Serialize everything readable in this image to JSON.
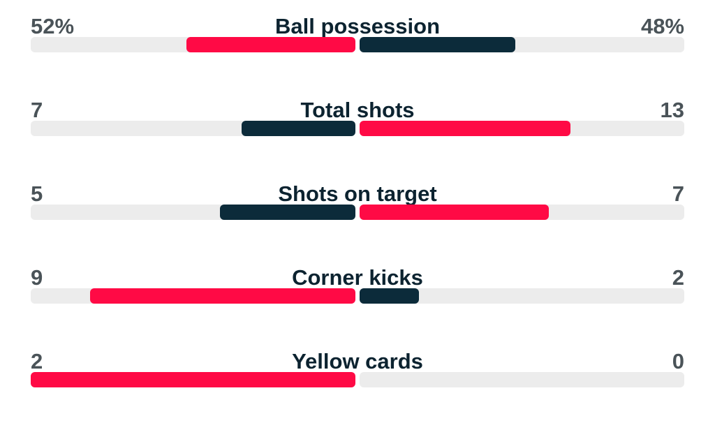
{
  "colors": {
    "leading": "#ff0a45",
    "trailing": "#0c2b3a",
    "track": "#ececec"
  },
  "stats": [
    {
      "title": "Ball possession",
      "home": "52%",
      "away": "48%",
      "home_value": 52,
      "away_value": 48,
      "home_leads": true
    },
    {
      "title": "Total shots",
      "home": "7",
      "away": "13",
      "home_value": 7,
      "away_value": 13,
      "home_leads": false
    },
    {
      "title": "Shots on target",
      "home": "5",
      "away": "7",
      "home_value": 5,
      "away_value": 7,
      "home_leads": false
    },
    {
      "title": "Corner kicks",
      "home": "9",
      "away": "2",
      "home_value": 9,
      "away_value": 2,
      "home_leads": true
    },
    {
      "title": "Yellow cards",
      "home": "2",
      "away": "0",
      "home_value": 2,
      "away_value": 0,
      "home_leads": true
    }
  ]
}
